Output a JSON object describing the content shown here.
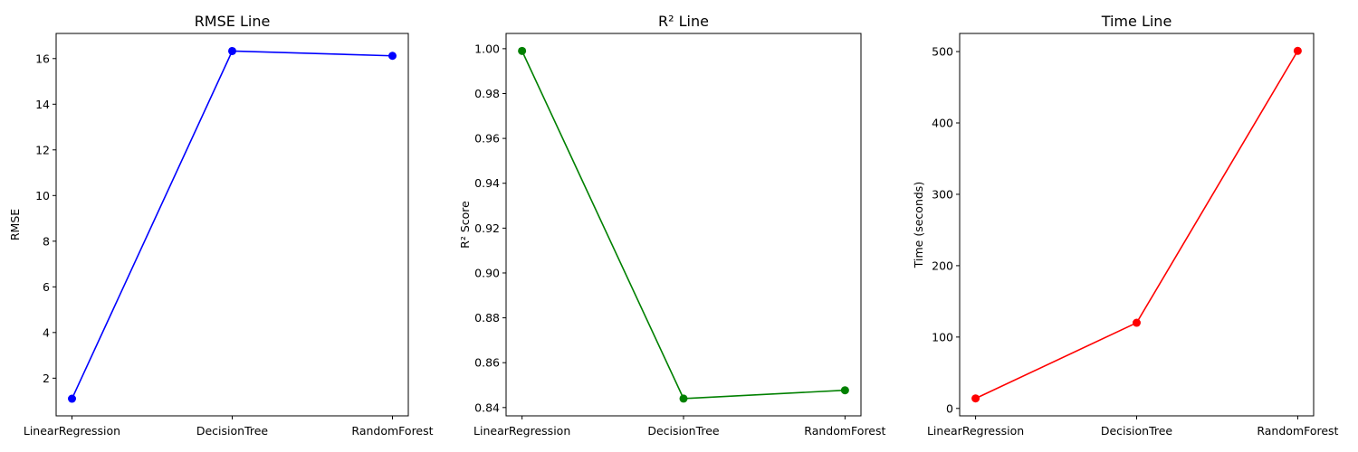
{
  "chart_data": [
    {
      "type": "line",
      "title": "RMSE Line",
      "xlabel": "",
      "ylabel": "RMSE",
      "categories": [
        "LinearRegression",
        "DecisionTree",
        "RandomForest"
      ],
      "series": [
        {
          "values": [
            1.1,
            16.33,
            16.12
          ],
          "color": "#0000ff"
        }
      ],
      "ylim": [
        0.35,
        17.1
      ],
      "yticks": [
        2,
        4,
        6,
        8,
        10,
        12,
        14,
        16
      ],
      "grid": false
    },
    {
      "type": "line",
      "title": "R² Line",
      "xlabel": "",
      "ylabel": "R² Score",
      "categories": [
        "LinearRegression",
        "DecisionTree",
        "RandomForest"
      ],
      "series": [
        {
          "values": [
            0.999,
            0.844,
            0.8477
          ],
          "color": "#008000"
        }
      ],
      "ylim": [
        0.8363,
        1.0068
      ],
      "yticks": [
        0.84,
        0.86,
        0.88,
        0.9,
        0.92,
        0.94,
        0.96,
        0.98,
        1.0
      ],
      "grid": false
    },
    {
      "type": "line",
      "title": "Time Line",
      "xlabel": "",
      "ylabel": "Time (seconds)",
      "categories": [
        "LinearRegression",
        "DecisionTree",
        "RandomForest"
      ],
      "series": [
        {
          "values": [
            14,
            120,
            501
          ],
          "color": "#ff0000"
        }
      ],
      "ylim": [
        -10.4,
        525.4
      ],
      "yticks": [
        0,
        100,
        200,
        300,
        400,
        500
      ],
      "grid": false
    }
  ]
}
